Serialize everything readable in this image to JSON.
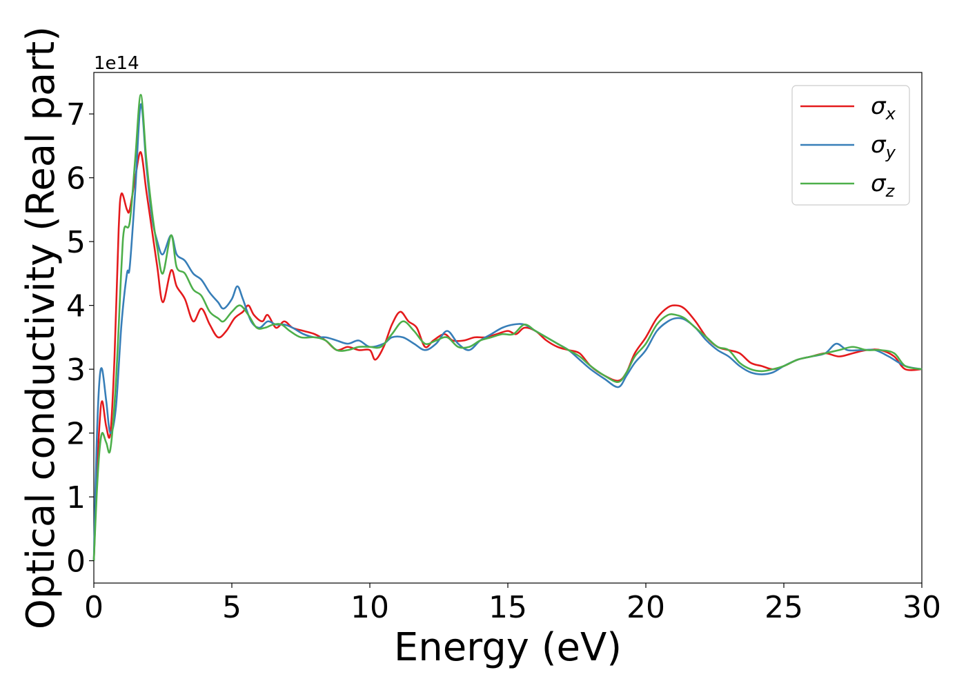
{
  "chart_data": {
    "type": "line",
    "xlabel": "Energy (eV)",
    "ylabel": "Optical conductivity (Real part)",
    "y_offset_label": "1e14",
    "xlim": [
      0,
      30
    ],
    "ylim": [
      -0.35,
      7.65
    ],
    "x_ticks": [
      0,
      5,
      10,
      15,
      20,
      25,
      30
    ],
    "y_ticks": [
      0,
      1,
      2,
      3,
      4,
      5,
      6,
      7
    ],
    "legend_position": "top-right",
    "grid": false,
    "series": [
      {
        "name": "σx",
        "symbol": "σ",
        "sub": "x",
        "color": "#e41a1c",
        "points": [
          [
            0,
            0
          ],
          [
            0.1,
            1.2
          ],
          [
            0.2,
            2.1
          ],
          [
            0.3,
            2.5
          ],
          [
            0.45,
            2.1
          ],
          [
            0.6,
            2.0
          ],
          [
            0.75,
            3.2
          ],
          [
            0.9,
            5.2
          ],
          [
            1.0,
            5.75
          ],
          [
            1.2,
            5.5
          ],
          [
            1.3,
            5.5
          ],
          [
            1.5,
            6.0
          ],
          [
            1.7,
            6.4
          ],
          [
            1.9,
            5.8
          ],
          [
            2.1,
            5.2
          ],
          [
            2.3,
            4.6
          ],
          [
            2.5,
            4.05
          ],
          [
            2.8,
            4.55
          ],
          [
            3.0,
            4.3
          ],
          [
            3.3,
            4.1
          ],
          [
            3.6,
            3.75
          ],
          [
            3.9,
            3.95
          ],
          [
            4.2,
            3.7
          ],
          [
            4.5,
            3.5
          ],
          [
            4.8,
            3.6
          ],
          [
            5.1,
            3.8
          ],
          [
            5.4,
            3.9
          ],
          [
            5.6,
            4.0
          ],
          [
            5.8,
            3.85
          ],
          [
            6.1,
            3.75
          ],
          [
            6.3,
            3.85
          ],
          [
            6.6,
            3.65
          ],
          [
            6.9,
            3.75
          ],
          [
            7.2,
            3.65
          ],
          [
            7.6,
            3.6
          ],
          [
            8.0,
            3.55
          ],
          [
            8.4,
            3.45
          ],
          [
            8.8,
            3.3
          ],
          [
            9.2,
            3.35
          ],
          [
            9.6,
            3.3
          ],
          [
            10.0,
            3.3
          ],
          [
            10.2,
            3.15
          ],
          [
            10.5,
            3.35
          ],
          [
            10.8,
            3.7
          ],
          [
            11.1,
            3.9
          ],
          [
            11.4,
            3.75
          ],
          [
            11.7,
            3.65
          ],
          [
            12.0,
            3.35
          ],
          [
            12.3,
            3.45
          ],
          [
            12.7,
            3.55
          ],
          [
            13.0,
            3.45
          ],
          [
            13.4,
            3.45
          ],
          [
            13.8,
            3.5
          ],
          [
            14.2,
            3.5
          ],
          [
            14.6,
            3.55
          ],
          [
            15.0,
            3.6
          ],
          [
            15.3,
            3.55
          ],
          [
            15.6,
            3.65
          ],
          [
            16.0,
            3.6
          ],
          [
            16.4,
            3.45
          ],
          [
            16.8,
            3.35
          ],
          [
            17.2,
            3.3
          ],
          [
            17.6,
            3.25
          ],
          [
            18.0,
            3.05
          ],
          [
            18.5,
            2.9
          ],
          [
            19.0,
            2.82
          ],
          [
            19.3,
            2.95
          ],
          [
            19.6,
            3.25
          ],
          [
            20.0,
            3.5
          ],
          [
            20.4,
            3.8
          ],
          [
            20.8,
            3.97
          ],
          [
            21.1,
            4.0
          ],
          [
            21.4,
            3.95
          ],
          [
            21.8,
            3.75
          ],
          [
            22.2,
            3.5
          ],
          [
            22.6,
            3.35
          ],
          [
            23.0,
            3.3
          ],
          [
            23.4,
            3.25
          ],
          [
            23.8,
            3.1
          ],
          [
            24.2,
            3.05
          ],
          [
            24.6,
            3.0
          ],
          [
            25.0,
            3.05
          ],
          [
            25.5,
            3.15
          ],
          [
            26.0,
            3.2
          ],
          [
            26.5,
            3.25
          ],
          [
            27.0,
            3.2
          ],
          [
            27.5,
            3.25
          ],
          [
            28.0,
            3.3
          ],
          [
            28.5,
            3.3
          ],
          [
            29.0,
            3.2
          ],
          [
            29.4,
            3.0
          ],
          [
            30.0,
            3.0
          ]
        ]
      },
      {
        "name": "σy",
        "symbol": "σ",
        "sub": "y",
        "color": "#377eb8",
        "points": [
          [
            0,
            0
          ],
          [
            0.1,
            1.8
          ],
          [
            0.2,
            2.8
          ],
          [
            0.3,
            3.0
          ],
          [
            0.45,
            2.5
          ],
          [
            0.6,
            2.0
          ],
          [
            0.8,
            2.4
          ],
          [
            1.0,
            3.7
          ],
          [
            1.2,
            4.5
          ],
          [
            1.3,
            4.6
          ],
          [
            1.5,
            5.8
          ],
          [
            1.7,
            7.15
          ],
          [
            1.9,
            6.2
          ],
          [
            2.1,
            5.4
          ],
          [
            2.3,
            5.0
          ],
          [
            2.5,
            4.8
          ],
          [
            2.8,
            5.1
          ],
          [
            3.0,
            4.8
          ],
          [
            3.3,
            4.7
          ],
          [
            3.6,
            4.5
          ],
          [
            3.9,
            4.4
          ],
          [
            4.2,
            4.2
          ],
          [
            4.5,
            4.05
          ],
          [
            4.7,
            3.95
          ],
          [
            5.0,
            4.1
          ],
          [
            5.2,
            4.3
          ],
          [
            5.4,
            4.1
          ],
          [
            5.7,
            3.75
          ],
          [
            6.0,
            3.65
          ],
          [
            6.3,
            3.75
          ],
          [
            6.6,
            3.7
          ],
          [
            6.9,
            3.7
          ],
          [
            7.2,
            3.65
          ],
          [
            7.6,
            3.55
          ],
          [
            8.0,
            3.5
          ],
          [
            8.4,
            3.5
          ],
          [
            8.8,
            3.45
          ],
          [
            9.2,
            3.4
          ],
          [
            9.6,
            3.45
          ],
          [
            10.0,
            3.35
          ],
          [
            10.5,
            3.4
          ],
          [
            10.8,
            3.5
          ],
          [
            11.2,
            3.5
          ],
          [
            11.6,
            3.4
          ],
          [
            12.0,
            3.3
          ],
          [
            12.4,
            3.4
          ],
          [
            12.8,
            3.6
          ],
          [
            13.2,
            3.4
          ],
          [
            13.6,
            3.3
          ],
          [
            14.0,
            3.45
          ],
          [
            14.4,
            3.55
          ],
          [
            14.8,
            3.65
          ],
          [
            15.2,
            3.7
          ],
          [
            15.6,
            3.7
          ],
          [
            16.0,
            3.6
          ],
          [
            16.4,
            3.5
          ],
          [
            16.8,
            3.4
          ],
          [
            17.2,
            3.3
          ],
          [
            17.6,
            3.15
          ],
          [
            18.0,
            3.0
          ],
          [
            18.5,
            2.85
          ],
          [
            19.0,
            2.72
          ],
          [
            19.3,
            2.9
          ],
          [
            19.6,
            3.1
          ],
          [
            20.0,
            3.3
          ],
          [
            20.4,
            3.6
          ],
          [
            20.8,
            3.75
          ],
          [
            21.1,
            3.8
          ],
          [
            21.4,
            3.78
          ],
          [
            21.8,
            3.65
          ],
          [
            22.2,
            3.45
          ],
          [
            22.6,
            3.3
          ],
          [
            23.0,
            3.2
          ],
          [
            23.4,
            3.05
          ],
          [
            23.8,
            2.95
          ],
          [
            24.2,
            2.92
          ],
          [
            24.6,
            2.95
          ],
          [
            25.0,
            3.05
          ],
          [
            25.5,
            3.15
          ],
          [
            26.0,
            3.2
          ],
          [
            26.5,
            3.25
          ],
          [
            26.9,
            3.4
          ],
          [
            27.3,
            3.3
          ],
          [
            27.8,
            3.3
          ],
          [
            28.3,
            3.3
          ],
          [
            28.8,
            3.2
          ],
          [
            29.4,
            3.05
          ],
          [
            30.0,
            3.0
          ]
        ]
      },
      {
        "name": "σz",
        "symbol": "σ",
        "sub": "z",
        "color": "#4daf4a",
        "points": [
          [
            0,
            0
          ],
          [
            0.1,
            1.0
          ],
          [
            0.2,
            1.7
          ],
          [
            0.3,
            2.0
          ],
          [
            0.45,
            1.85
          ],
          [
            0.6,
            1.75
          ],
          [
            0.8,
            2.8
          ],
          [
            1.0,
            4.6
          ],
          [
            1.1,
            5.2
          ],
          [
            1.3,
            5.3
          ],
          [
            1.5,
            6.3
          ],
          [
            1.7,
            7.3
          ],
          [
            1.9,
            6.3
          ],
          [
            2.1,
            5.5
          ],
          [
            2.3,
            4.9
          ],
          [
            2.5,
            4.5
          ],
          [
            2.8,
            5.1
          ],
          [
            3.0,
            4.6
          ],
          [
            3.3,
            4.5
          ],
          [
            3.6,
            4.25
          ],
          [
            3.9,
            4.15
          ],
          [
            4.2,
            3.9
          ],
          [
            4.5,
            3.8
          ],
          [
            4.7,
            3.75
          ],
          [
            5.0,
            3.9
          ],
          [
            5.3,
            4.0
          ],
          [
            5.6,
            3.85
          ],
          [
            5.9,
            3.65
          ],
          [
            6.2,
            3.65
          ],
          [
            6.5,
            3.7
          ],
          [
            6.8,
            3.7
          ],
          [
            7.1,
            3.6
          ],
          [
            7.5,
            3.5
          ],
          [
            8.0,
            3.5
          ],
          [
            8.4,
            3.45
          ],
          [
            8.8,
            3.3
          ],
          [
            9.2,
            3.3
          ],
          [
            9.6,
            3.35
          ],
          [
            10.0,
            3.35
          ],
          [
            10.4,
            3.35
          ],
          [
            10.8,
            3.55
          ],
          [
            11.2,
            3.75
          ],
          [
            11.6,
            3.6
          ],
          [
            12.0,
            3.4
          ],
          [
            12.4,
            3.45
          ],
          [
            12.8,
            3.5
          ],
          [
            13.2,
            3.35
          ],
          [
            13.6,
            3.35
          ],
          [
            14.0,
            3.45
          ],
          [
            14.4,
            3.5
          ],
          [
            14.8,
            3.55
          ],
          [
            15.2,
            3.55
          ],
          [
            15.6,
            3.7
          ],
          [
            16.0,
            3.6
          ],
          [
            16.4,
            3.5
          ],
          [
            16.8,
            3.4
          ],
          [
            17.2,
            3.3
          ],
          [
            17.6,
            3.2
          ],
          [
            18.0,
            3.05
          ],
          [
            18.5,
            2.9
          ],
          [
            19.0,
            2.8
          ],
          [
            19.3,
            2.95
          ],
          [
            19.6,
            3.2
          ],
          [
            20.0,
            3.4
          ],
          [
            20.4,
            3.7
          ],
          [
            20.8,
            3.85
          ],
          [
            21.1,
            3.85
          ],
          [
            21.4,
            3.8
          ],
          [
            21.8,
            3.65
          ],
          [
            22.2,
            3.5
          ],
          [
            22.6,
            3.35
          ],
          [
            23.0,
            3.3
          ],
          [
            23.4,
            3.1
          ],
          [
            23.8,
            3.0
          ],
          [
            24.2,
            2.97
          ],
          [
            24.6,
            3.0
          ],
          [
            25.0,
            3.05
          ],
          [
            25.5,
            3.15
          ],
          [
            26.0,
            3.2
          ],
          [
            26.5,
            3.25
          ],
          [
            27.0,
            3.3
          ],
          [
            27.5,
            3.35
          ],
          [
            28.0,
            3.3
          ],
          [
            28.5,
            3.3
          ],
          [
            29.0,
            3.25
          ],
          [
            29.4,
            3.05
          ],
          [
            30.0,
            3.0
          ]
        ]
      }
    ]
  }
}
